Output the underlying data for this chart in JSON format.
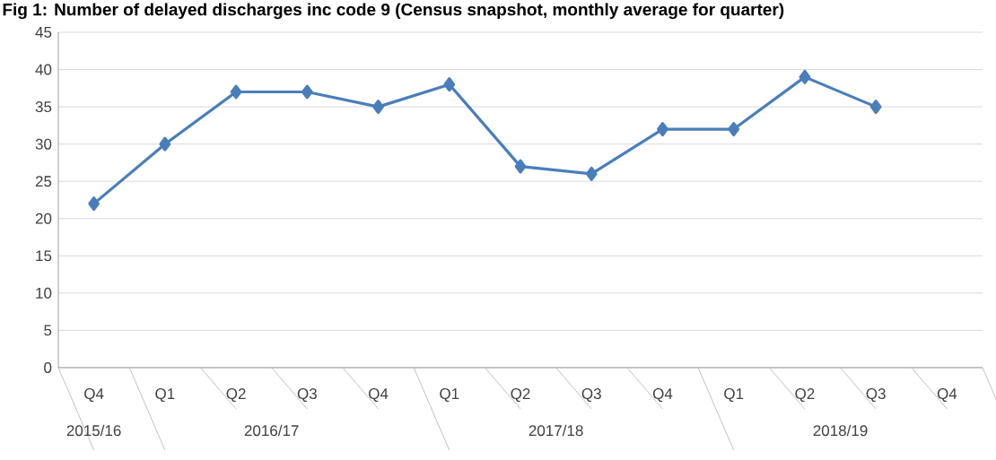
{
  "chart_data": {
    "type": "line",
    "title": "Fig 1: Number of delayed discharges inc code 9 (Census snapshot, monthly average for quarter)",
    "categories": [
      "Q4",
      "Q1",
      "Q2",
      "Q3",
      "Q4",
      "Q1",
      "Q2",
      "Q3",
      "Q4",
      "Q1",
      "Q2",
      "Q3",
      "Q4"
    ],
    "values": [
      22,
      30,
      37,
      37,
      35,
      38,
      27,
      26,
      32,
      32,
      39,
      35,
      null
    ],
    "color": "#4a7ebb",
    "marker": "diamond",
    "line_style": "solid",
    "ylim": [
      0,
      45
    ],
    "yticks": [
      0,
      5,
      10,
      15,
      20,
      25,
      30,
      35,
      40,
      45
    ],
    "grid": "y",
    "annotations": [
      "2015/16",
      "2016/17",
      "2017/18",
      "2018/19"
    ]
  }
}
